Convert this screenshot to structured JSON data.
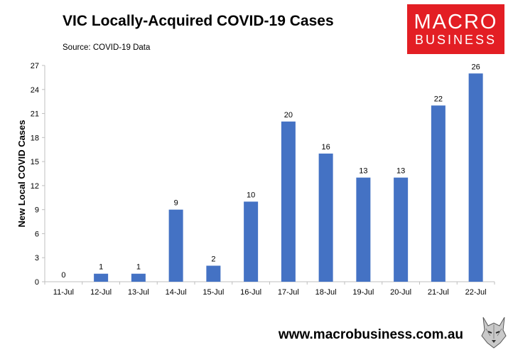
{
  "header": {
    "title": "VIC Locally-Acquired COVID-19 Cases",
    "subtitle": "Source: COVID-19 Data"
  },
  "logo": {
    "line1": "MACRO",
    "line2": "BUSINESS",
    "color": "#e31e24"
  },
  "footer": {
    "url": "www.macrobusiness.com.au"
  },
  "colors": {
    "bar": "#4472c4",
    "axis": "#bfbfbf"
  },
  "chart_data": {
    "type": "bar",
    "categories": [
      "11-Jul",
      "12-Jul",
      "13-Jul",
      "14-Jul",
      "15-Jul",
      "16-Jul",
      "17-Jul",
      "18-Jul",
      "19-Jul",
      "20-Jul",
      "21-Jul",
      "22-Jul"
    ],
    "values": [
      0,
      1,
      1,
      9,
      2,
      10,
      20,
      16,
      13,
      13,
      22,
      26
    ],
    "title": "VIC Locally-Acquired COVID-19 Cases",
    "subtitle": "Source: COVID-19 Data",
    "xlabel": "",
    "ylabel": "New Local COVID Cases",
    "ylim": [
      0,
      27
    ],
    "yticks": [
      0,
      3,
      6,
      9,
      12,
      15,
      18,
      21,
      24,
      27
    ],
    "grid": false,
    "data_labels": true
  }
}
